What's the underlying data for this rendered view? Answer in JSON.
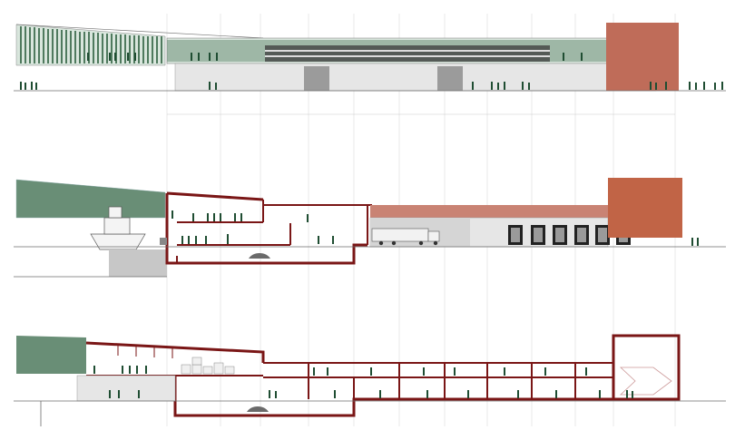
{
  "drawing": {
    "type": "architectural elevations and sections",
    "views": [
      {
        "id": "elevation",
        "kind": "street elevation"
      },
      {
        "id": "section-a",
        "kind": "longitudinal section with facade"
      },
      {
        "id": "section-b",
        "kind": "longitudinal section"
      }
    ],
    "colors": {
      "cut_walls": "#7a1616",
      "green_glazing": "#4f7a5e",
      "rust_cladding": "#b4503a",
      "concrete": "#e6e6e6",
      "people": "#1f4d32",
      "grid": "#d9d9d9"
    },
    "icons": [
      "person-figure",
      "truck",
      "car",
      "ship",
      "forklift",
      "loading-door"
    ]
  }
}
